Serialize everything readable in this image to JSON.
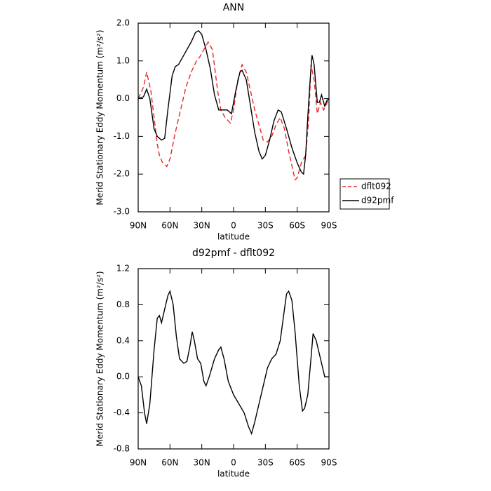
{
  "chart_data": [
    {
      "type": "line",
      "title": "ANN",
      "xlabel": "latitude",
      "ylabel": "Merid Stationary Eddy Momentum (m²/s²)",
      "xlim": [
        90,
        -90
      ],
      "xticks": [
        {
          "value": 90,
          "label": "90N"
        },
        {
          "value": 60,
          "label": "60N"
        },
        {
          "value": 30,
          "label": "30N"
        },
        0,
        {
          "value": -30,
          "label": "30S"
        },
        {
          "value": -60,
          "label": "60S"
        },
        {
          "value": -90,
          "label": "90S"
        }
      ],
      "ylim": [
        -3,
        2
      ],
      "yticks": [
        {
          "value": -3,
          "label": "-3.0"
        },
        {
          "value": -2,
          "label": "-2.0"
        },
        {
          "value": -1,
          "label": "-1.0"
        },
        {
          "value": 0,
          "label": "0.0"
        },
        {
          "value": 1,
          "label": "1.0"
        },
        {
          "value": 2,
          "label": "2.0"
        }
      ],
      "legend": "right",
      "series": [
        {
          "name": "dflt092",
          "color": "#e8272a",
          "linestyle": "dashed",
          "x": [
            90,
            85,
            82,
            78,
            75,
            72,
            70,
            67,
            63,
            60,
            55,
            50,
            45,
            40,
            35,
            32,
            28,
            24,
            20,
            15,
            12,
            8,
            3,
            0,
            -4,
            -8,
            -12,
            -16,
            -20,
            -25,
            -28,
            -32,
            -36,
            -40,
            -44,
            -48,
            -52,
            -56,
            -58,
            -60,
            -64,
            -68,
            -71,
            -73,
            -76,
            -79,
            -82,
            -85,
            -90
          ],
          "values": [
            0.0,
            0.3,
            0.7,
            0.2,
            -0.5,
            -1.2,
            -1.5,
            -1.7,
            -1.8,
            -1.6,
            -0.9,
            -0.3,
            0.3,
            0.7,
            1.0,
            1.1,
            1.3,
            1.5,
            1.3,
            0.2,
            -0.3,
            -0.5,
            -0.65,
            -0.3,
            0.5,
            0.9,
            0.7,
            0.2,
            -0.3,
            -0.8,
            -1.1,
            -1.15,
            -1.0,
            -0.7,
            -0.5,
            -0.8,
            -1.4,
            -1.9,
            -2.15,
            -2.1,
            -1.7,
            -1.5,
            -0.5,
            0.9,
            0.5,
            -0.4,
            -0.1,
            -0.3,
            0.0
          ]
        },
        {
          "name": "d92pmf",
          "color": "#000000",
          "linestyle": "solid",
          "x": [
            90,
            85,
            82,
            79,
            75,
            72,
            68,
            65,
            62,
            58,
            55,
            52,
            48,
            44,
            40,
            36,
            33,
            30,
            26,
            22,
            18,
            14,
            10,
            6,
            2,
            -2,
            -6,
            -8,
            -12,
            -16,
            -20,
            -24,
            -27,
            -30,
            -34,
            -38,
            -42,
            -45,
            -50,
            -55,
            -60,
            -64,
            -66,
            -68,
            -70,
            -72,
            -74,
            -76,
            -79,
            -81,
            -83,
            -86,
            -88,
            -90
          ],
          "values": [
            0.0,
            0.05,
            0.25,
            0.0,
            -0.8,
            -1.0,
            -1.1,
            -1.05,
            -0.3,
            0.6,
            0.85,
            0.9,
            1.1,
            1.3,
            1.5,
            1.75,
            1.8,
            1.7,
            1.3,
            0.8,
            0.1,
            -0.3,
            -0.3,
            -0.3,
            -0.4,
            0.2,
            0.7,
            0.75,
            0.5,
            -0.2,
            -0.9,
            -1.4,
            -1.6,
            -1.5,
            -1.1,
            -0.6,
            -0.3,
            -0.35,
            -0.8,
            -1.3,
            -1.7,
            -1.95,
            -2.0,
            -1.5,
            -0.5,
            0.4,
            1.15,
            0.9,
            -0.1,
            -0.1,
            0.1,
            -0.2,
            -0.05,
            0.0
          ]
        }
      ]
    },
    {
      "type": "line",
      "title": "d92pmf - dflt092",
      "xlabel": "latitude",
      "ylabel": "Merid Stationary Eddy Momentum (m²/s²)",
      "xlim": [
        90,
        -90
      ],
      "xticks": [
        {
          "value": 90,
          "label": "90N"
        },
        {
          "value": 60,
          "label": "60N"
        },
        {
          "value": 30,
          "label": "30N"
        },
        0,
        {
          "value": -30,
          "label": "30S"
        },
        {
          "value": -60,
          "label": "60S"
        },
        {
          "value": -90,
          "label": "90S"
        }
      ],
      "ylim": [
        -0.8,
        1.2
      ],
      "yticks": [
        -0.8,
        -0.4,
        {
          "value": 0,
          "label": "0.0"
        },
        0.4,
        0.8,
        1.2
      ],
      "series": [
        {
          "color": "#000000",
          "linestyle": "solid",
          "x": [
            90,
            87,
            84,
            82,
            79,
            75,
            72,
            70,
            68,
            65,
            62,
            60,
            57,
            54,
            51,
            47,
            44,
            41,
            39,
            37,
            34,
            31,
            28,
            26,
            23,
            18,
            14,
            12,
            9,
            5,
            0,
            -5,
            -10,
            -14,
            -17,
            -20,
            -24,
            -28,
            -32,
            -36,
            -40,
            -44,
            -48,
            -50,
            -52,
            -55,
            -58,
            -62,
            -65,
            -67,
            -70,
            -73,
            -75,
            -78,
            -82,
            -86,
            -90
          ],
          "values": [
            0.0,
            -0.1,
            -0.4,
            -0.52,
            -0.3,
            0.3,
            0.65,
            0.68,
            0.6,
            0.75,
            0.9,
            0.95,
            0.8,
            0.45,
            0.2,
            0.15,
            0.17,
            0.35,
            0.5,
            0.4,
            0.2,
            0.15,
            -0.05,
            -0.1,
            0.0,
            0.2,
            0.3,
            0.33,
            0.2,
            -0.05,
            -0.2,
            -0.3,
            -0.4,
            -0.55,
            -0.63,
            -0.5,
            -0.3,
            -0.1,
            0.1,
            0.2,
            0.25,
            0.4,
            0.75,
            0.92,
            0.95,
            0.85,
            0.5,
            -0.1,
            -0.38,
            -0.35,
            -0.2,
            0.2,
            0.48,
            0.4,
            0.2,
            0.0,
            0.0
          ]
        }
      ]
    }
  ]
}
